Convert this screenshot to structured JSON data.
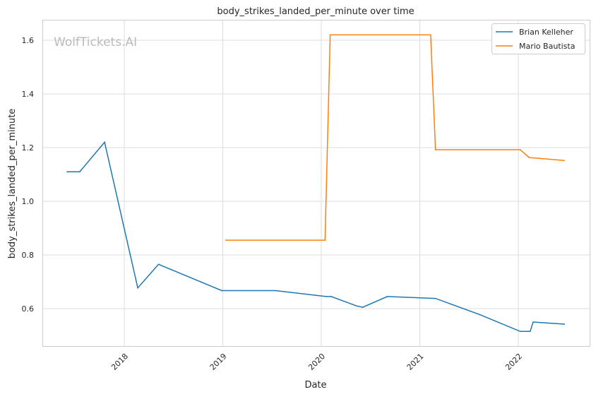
{
  "chart_data": {
    "type": "line",
    "title": "body_strikes_landed_per_minute over time",
    "xlabel": "Date",
    "ylabel": "body_strikes_landed_per_minute",
    "watermark": "WolfTickets.AI",
    "x_ticks": [
      "2018",
      "2019",
      "2020",
      "2021",
      "2022"
    ],
    "y_ticks": [
      "0.6",
      "0.8",
      "1.0",
      "1.2",
      "1.4",
      "1.6"
    ],
    "xlim": [
      "2017-02-20",
      "2022-10-01"
    ],
    "ylim": [
      0.455,
      1.672
    ],
    "grid": true,
    "legend_position": "top-right",
    "series": [
      {
        "name": "Brian Kelleher",
        "color": "#1f77b4",
        "x": [
          "2017-06-03",
          "2017-07-20",
          "2017-10-20",
          "2018-02-20",
          "2018-05-08",
          "2018-12-28",
          "2019-07-15",
          "2020-01-19",
          "2020-02-07",
          "2020-05-11",
          "2020-06-03",
          "2020-09-02",
          "2021-02-28",
          "2021-08-11",
          "2022-01-08",
          "2022-02-14",
          "2022-02-25",
          "2022-06-21"
        ],
        "values": [
          1.11,
          1.11,
          1.22,
          0.677,
          0.765,
          0.667,
          0.667,
          0.645,
          0.645,
          0.61,
          0.605,
          0.645,
          0.638,
          0.578,
          0.515,
          0.515,
          0.55,
          0.542
        ]
      },
      {
        "name": "Mario Bautista",
        "color": "#ff7f0e",
        "x": [
          "2019-01-12",
          "2020-01-15",
          "2020-02-03",
          "2021-02-10",
          "2021-02-28",
          "2022-01-08",
          "2022-02-10",
          "2022-06-21"
        ],
        "values": [
          0.855,
          0.855,
          1.62,
          1.62,
          1.192,
          1.192,
          1.163,
          1.152
        ]
      }
    ]
  }
}
